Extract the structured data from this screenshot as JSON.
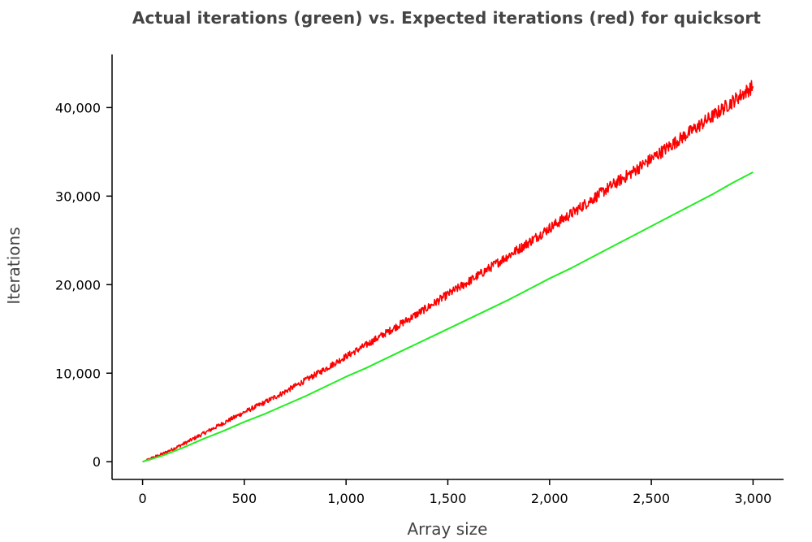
{
  "chart_data": {
    "type": "line",
    "title": "Actual iterations (green) vs. Expected iterations (red) for quicksort",
    "xlabel": "Array size",
    "ylabel": "Iterations",
    "xlim": [
      -150,
      3150
    ],
    "ylim": [
      -2000,
      46000
    ],
    "x_ticks": [
      0,
      500,
      1000,
      1500,
      2000,
      2500,
      3000
    ],
    "x_tick_labels": [
      "0",
      "500",
      "1,000",
      "1,500",
      "2,000",
      "2,500",
      "3,000"
    ],
    "y_ticks": [
      0,
      10000,
      20000,
      30000,
      40000
    ],
    "y_tick_labels": [
      "0",
      "10,000",
      "20,000",
      "30,000",
      "40,000"
    ],
    "grid": false,
    "legend": "none",
    "series": [
      {
        "color": "#ff0000",
        "noisy": true,
        "x": [
          0,
          100,
          200,
          300,
          400,
          500,
          600,
          700,
          800,
          900,
          1000,
          1100,
          1200,
          1300,
          1400,
          1500,
          1600,
          1700,
          1800,
          1900,
          2000,
          2100,
          2200,
          2300,
          2400,
          2500,
          2600,
          2700,
          2800,
          2900,
          3000
        ],
        "y": [
          0,
          900,
          2000,
          3200,
          4400,
          5600,
          6700,
          7900,
          9200,
          10500,
          11900,
          13200,
          14600,
          16000,
          17400,
          18900,
          20300,
          21800,
          23300,
          24800,
          26400,
          27900,
          29500,
          31100,
          32600,
          34200,
          35800,
          37400,
          39000,
          40700,
          42400
        ]
      },
      {
        "color": "#22ee22",
        "noisy": false,
        "x": [
          0,
          100,
          200,
          300,
          400,
          500,
          600,
          700,
          800,
          900,
          1000,
          1100,
          1200,
          1300,
          1400,
          1500,
          1600,
          1700,
          1800,
          1900,
          2000,
          2100,
          2200,
          2300,
          2400,
          2500,
          2600,
          2700,
          2800,
          2900,
          3000
        ],
        "y": [
          0,
          700,
          1600,
          2600,
          3500,
          4500,
          5400,
          6400,
          7400,
          8500,
          9600,
          10600,
          11700,
          12800,
          13900,
          15000,
          16100,
          17200,
          18300,
          19500,
          20700,
          21800,
          23000,
          24200,
          25400,
          26600,
          27800,
          29000,
          30200,
          31500,
          32700
        ]
      }
    ]
  }
}
